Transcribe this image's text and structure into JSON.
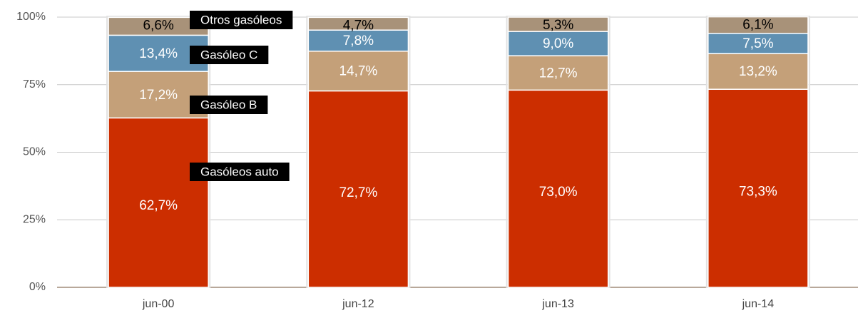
{
  "chart_data": {
    "type": "stacked_bar",
    "categories": [
      "jun-00",
      "jun-12",
      "jun-13",
      "jun-14"
    ],
    "series": [
      {
        "name": "Gasóleos auto",
        "color": "#cc2e00",
        "label_color": "#ffffff",
        "values": [
          62.7,
          72.7,
          73.0,
          73.3
        ],
        "value_labels": [
          "62,7%",
          "72,7%",
          "73,0%",
          "73,3%"
        ]
      },
      {
        "name": "Gasóleo B",
        "color": "#c4a079",
        "label_color": "#ffffff",
        "values": [
          17.2,
          14.7,
          12.7,
          13.2
        ],
        "value_labels": [
          "17,2%",
          "14,7%",
          "12,7%",
          "13,2%"
        ]
      },
      {
        "name": "Gasóleo C",
        "color": "#5f90b2",
        "label_color": "#ffffff",
        "values": [
          13.4,
          7.8,
          9.0,
          7.5
        ],
        "value_labels": [
          "13,4%",
          "7,8%",
          "9,0%",
          "7,5%"
        ]
      },
      {
        "name": "Otros gasóleos",
        "color": "#a89279",
        "label_color": "#000000",
        "values": [
          6.6,
          4.7,
          5.3,
          6.1
        ],
        "value_labels": [
          "6,6%",
          "4,7%",
          "5,3%",
          "6,1%"
        ]
      }
    ],
    "ylim": [
      0,
      100
    ],
    "yticks": [
      {
        "value": 0,
        "label": "0%"
      },
      {
        "value": 25,
        "label": "25%"
      },
      {
        "value": 50,
        "label": "50%"
      },
      {
        "value": 75,
        "label": "75%"
      },
      {
        "value": 100,
        "label": "100%"
      }
    ],
    "grid": true
  }
}
